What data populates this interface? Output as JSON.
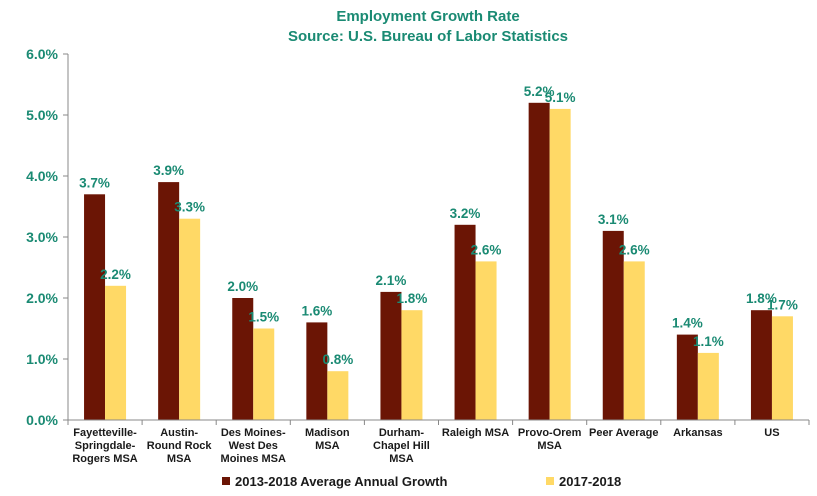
{
  "chart_data": {
    "type": "bar",
    "title": "Employment Growth Rate",
    "subtitle": "Source: U.S. Bureau of Labor Statistics",
    "categories": [
      [
        "Fayetteville-",
        "Springdale-",
        "Rogers MSA"
      ],
      [
        "Austin-",
        "Round Rock",
        "MSA"
      ],
      [
        "Des Moines-",
        "West Des",
        "Moines MSA"
      ],
      [
        "Madison",
        "MSA"
      ],
      [
        "Durham-",
        "Chapel Hill",
        "MSA"
      ],
      [
        "Raleigh MSA"
      ],
      [
        "Provo-Orem",
        "MSA"
      ],
      [
        "Peer Average"
      ],
      [
        "Arkansas"
      ],
      [
        "US"
      ]
    ],
    "series": [
      {
        "name": "2013-2018 Average Annual Growth",
        "color": "#6b1505",
        "values": [
          3.7,
          3.9,
          2.0,
          1.6,
          2.1,
          3.2,
          5.2,
          3.1,
          1.4,
          1.8
        ],
        "labels": [
          "3.7%",
          "3.9%",
          "2.0%",
          "1.6%",
          "2.1%",
          "3.2%",
          "5.2%",
          "3.1%",
          "1.4%",
          "1.8%"
        ]
      },
      {
        "name": "2017-2018",
        "color": "#ffd966",
        "values": [
          2.2,
          3.3,
          1.5,
          0.8,
          1.8,
          2.6,
          5.1,
          2.6,
          1.1,
          1.7
        ],
        "labels": [
          "2.2%",
          "3.3%",
          "1.5%",
          "0.8%",
          "1.8%",
          "2.6%",
          "5.1%",
          "2.6%",
          "1.1%",
          "1.7%"
        ]
      }
    ],
    "ylim": [
      0,
      6
    ],
    "yticks": [
      0,
      1,
      2,
      3,
      4,
      5,
      6
    ],
    "ytick_labels": [
      "0.0%",
      "1.0%",
      "2.0%",
      "3.0%",
      "4.0%",
      "5.0%",
      "6.0%"
    ],
    "legend_position": "bottom",
    "grid": false
  },
  "colors": {
    "title": "#1a8a73",
    "axis": "#888888"
  }
}
